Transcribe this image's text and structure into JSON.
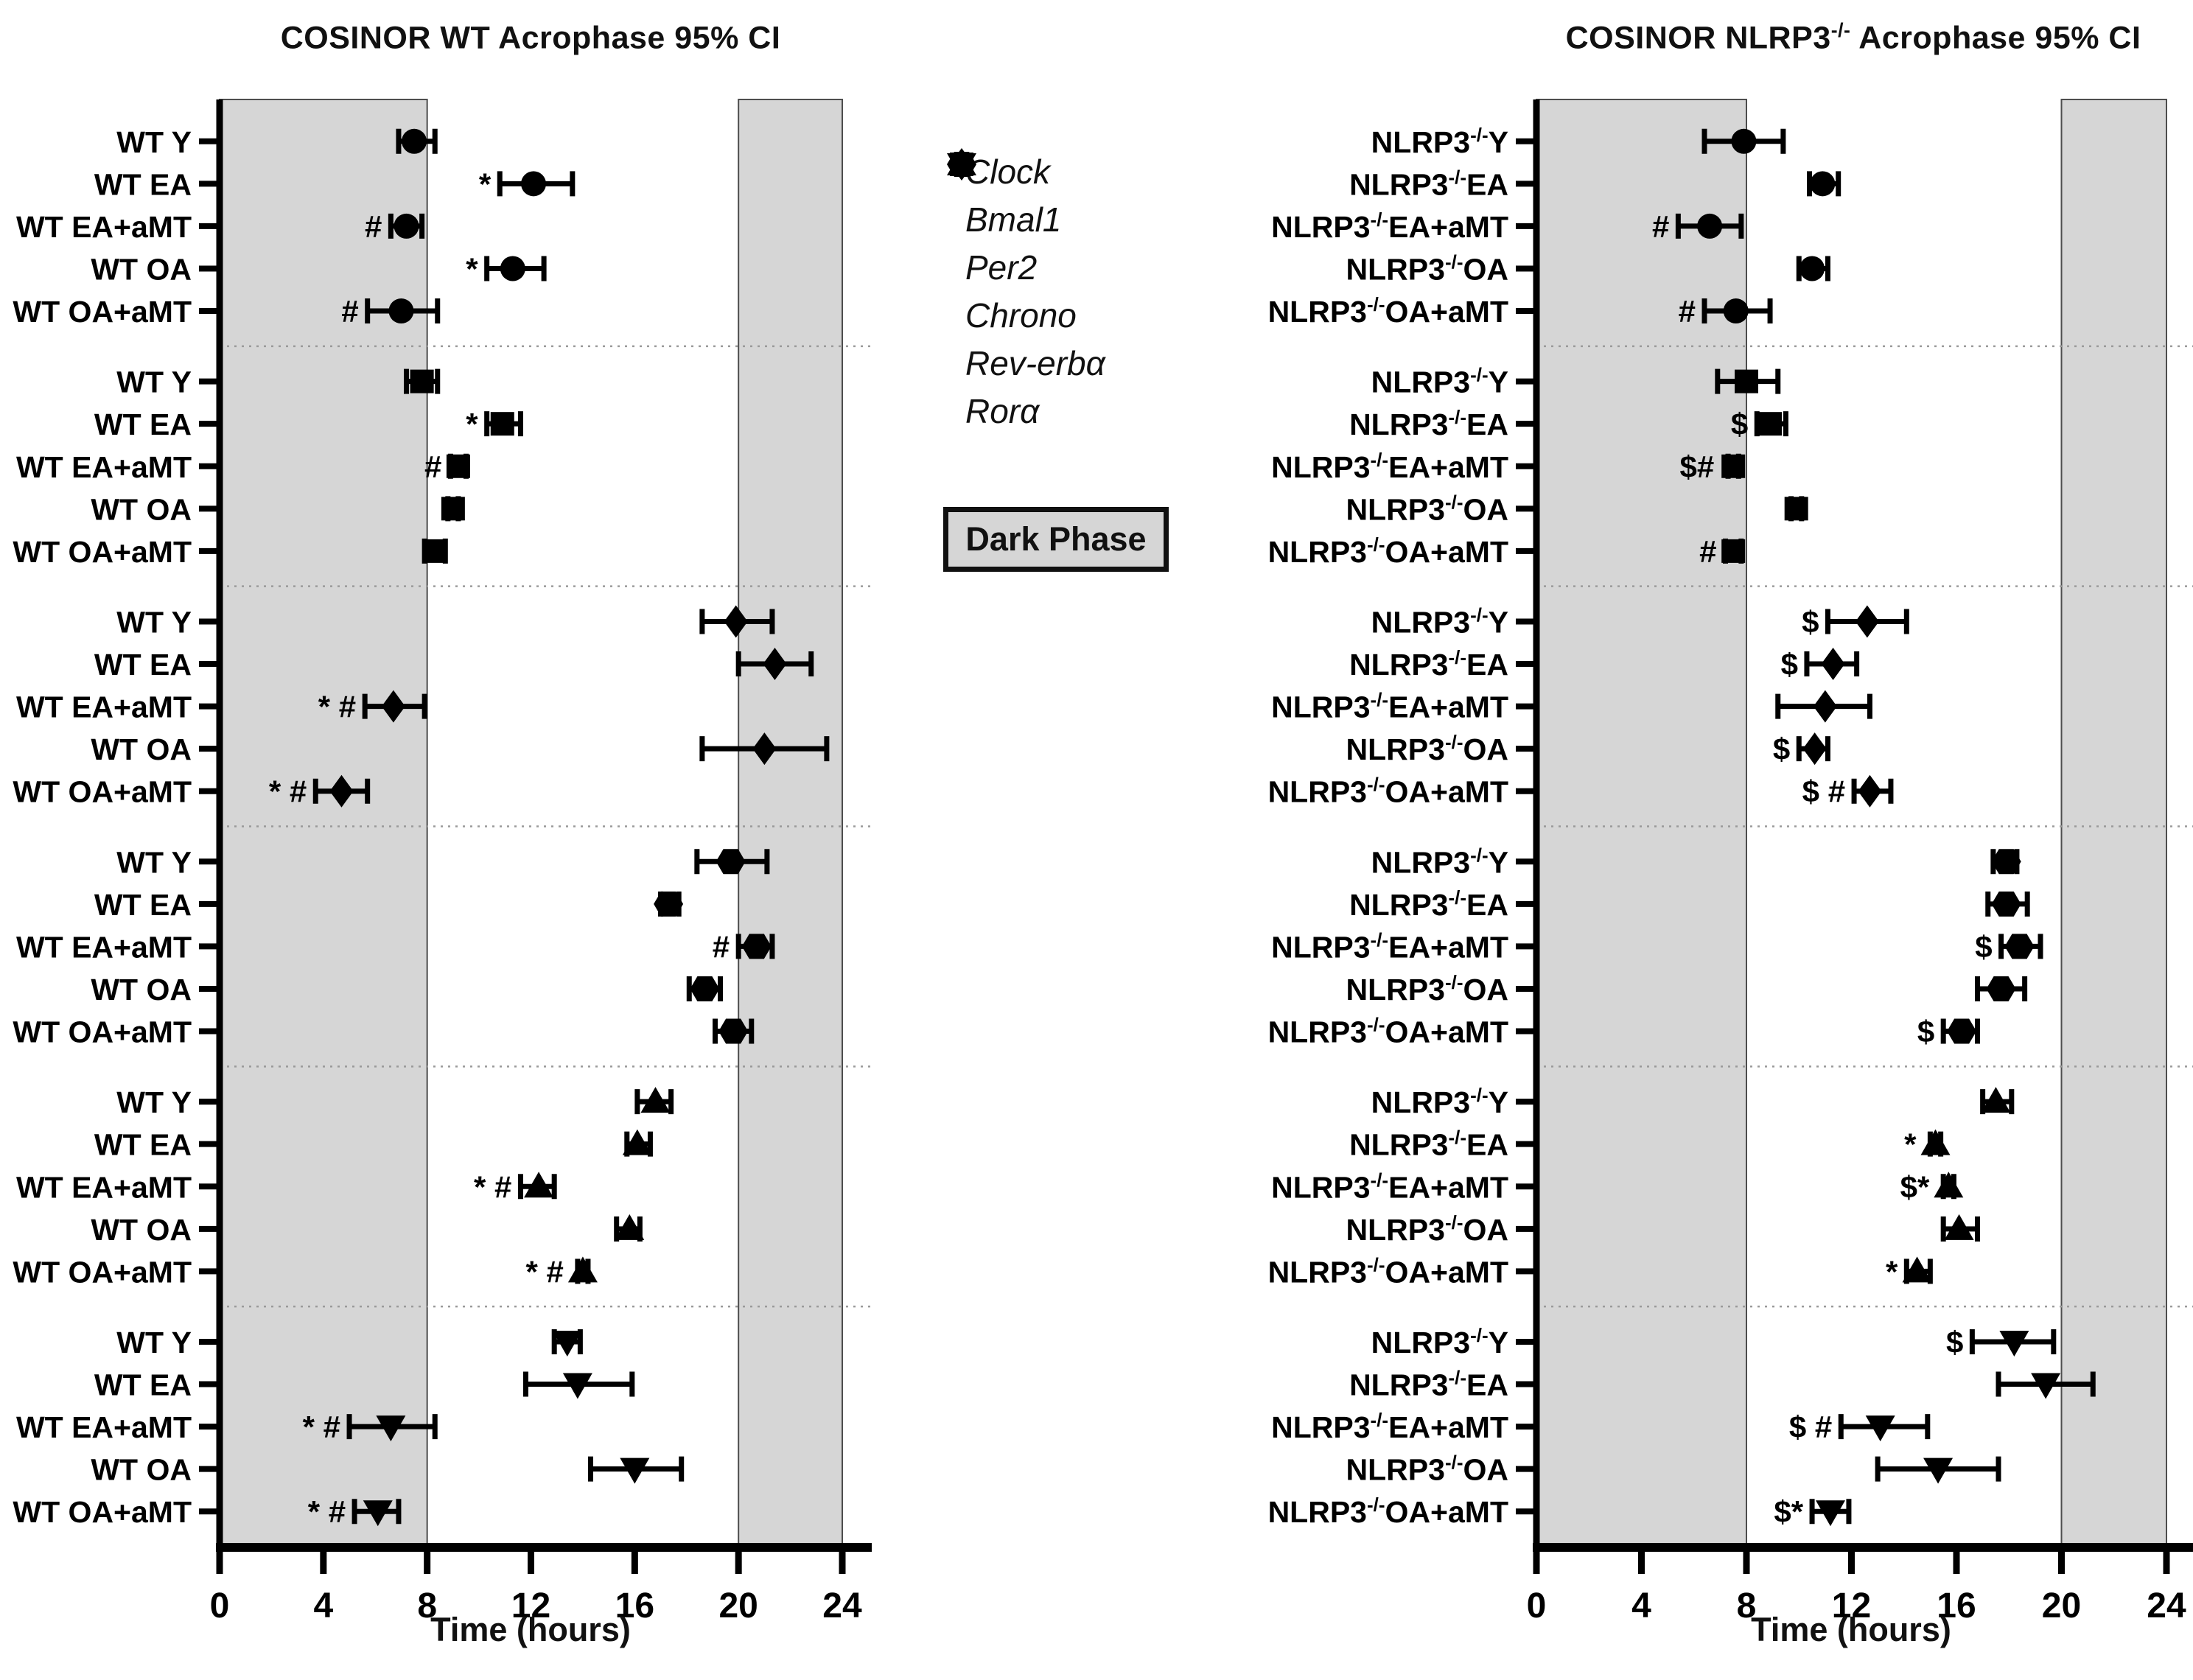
{
  "dark_phase_label": "Dark Phase",
  "colors": {
    "dark_band": "#d6d6d6",
    "band_border": "#4d4d4d",
    "marker": "#000000",
    "separator": "#9a9a9a",
    "axis": "#000000"
  },
  "legend": {
    "items": [
      {
        "marker": "circle",
        "label": "Clock"
      },
      {
        "marker": "square",
        "label": "Bmal1"
      },
      {
        "marker": "diamond",
        "label": "Per2"
      },
      {
        "marker": "hexagon",
        "label": "Chrono"
      },
      {
        "marker": "triangle-up",
        "label": "Rev-erbα"
      },
      {
        "marker": "triangle-down",
        "label": "Rorα"
      }
    ]
  },
  "chart_data": [
    {
      "panel": "WT",
      "type": "scatter",
      "title": "COSINOR WT Acrophase 95% CI",
      "title_prefix": "COSINOR WT Acrophase 95% CI",
      "title_sup": "",
      "title_suffix": "",
      "xlabel": "Time (hours)",
      "xlim": [
        0,
        24
      ],
      "xticks": [
        0,
        4,
        8,
        12,
        16,
        20,
        24
      ],
      "dark_bands": [
        [
          0,
          8
        ],
        [
          20,
          24
        ]
      ],
      "row_label_prefix": "",
      "row_label_sup": "",
      "genes": [
        {
          "name": "Clock",
          "marker": "circle",
          "rows": [
            {
              "label": "WT Y",
              "x": 7.5,
              "ci": [
                6.9,
                8.3
              ],
              "ann": ""
            },
            {
              "label": "WT EA",
              "x": 12.1,
              "ci": [
                10.8,
                13.6
              ],
              "ann": "*"
            },
            {
              "label": "WT EA+aMT",
              "x": 7.2,
              "ci": [
                6.6,
                7.8
              ],
              "ann": "#"
            },
            {
              "label": "WT OA",
              "x": 11.3,
              "ci": [
                10.3,
                12.5
              ],
              "ann": "*"
            },
            {
              "label": "WT OA+aMT",
              "x": 7.0,
              "ci": [
                5.7,
                8.4
              ],
              "ann": "#"
            }
          ]
        },
        {
          "name": "Bmal1",
          "marker": "square",
          "rows": [
            {
              "label": "WT Y",
              "x": 7.8,
              "ci": [
                7.2,
                8.4
              ],
              "ann": ""
            },
            {
              "label": "WT EA",
              "x": 10.9,
              "ci": [
                10.3,
                11.6
              ],
              "ann": "*"
            },
            {
              "label": "WT EA+aMT",
              "x": 9.2,
              "ci": [
                8.9,
                9.5
              ],
              "ann": "#"
            },
            {
              "label": "WT OA",
              "x": 9.0,
              "ci": [
                8.8,
                9.2
              ],
              "ann": ""
            },
            {
              "label": "WT OA+aMT",
              "x": 8.3,
              "ci": [
                7.9,
                8.7
              ],
              "ann": ""
            }
          ]
        },
        {
          "name": "Per2",
          "marker": "diamond",
          "rows": [
            {
              "label": "WT Y",
              "x": 19.9,
              "ci": [
                18.6,
                21.3
              ],
              "ann": ""
            },
            {
              "label": "WT EA",
              "x": 21.4,
              "ci": [
                20.0,
                22.8
              ],
              "ann": ""
            },
            {
              "label": "WT EA+aMT",
              "x": 6.7,
              "ci": [
                5.6,
                7.9
              ],
              "ann": "* #"
            },
            {
              "label": "WT OA",
              "x": 21.0,
              "ci": [
                18.6,
                23.4
              ],
              "ann": ""
            },
            {
              "label": "WT OA+aMT",
              "x": 4.7,
              "ci": [
                3.7,
                5.7
              ],
              "ann": "* #"
            }
          ]
        },
        {
          "name": "Chrono",
          "marker": "hexagon",
          "rows": [
            {
              "label": "WT Y",
              "x": 19.7,
              "ci": [
                18.4,
                21.1
              ],
              "ann": ""
            },
            {
              "label": "WT EA",
              "x": 17.3,
              "ci": [
                17.0,
                17.7
              ],
              "ann": ""
            },
            {
              "label": "WT EA+aMT",
              "x": 20.7,
              "ci": [
                20.0,
                21.3
              ],
              "ann": "#"
            },
            {
              "label": "WT OA",
              "x": 18.7,
              "ci": [
                18.1,
                19.3
              ],
              "ann": ""
            },
            {
              "label": "WT OA+aMT",
              "x": 19.8,
              "ci": [
                19.1,
                20.5
              ],
              "ann": ""
            }
          ]
        },
        {
          "name": "Rev-erbα",
          "marker": "triangle-up",
          "rows": [
            {
              "label": "WT Y",
              "x": 16.8,
              "ci": [
                16.1,
                17.4
              ],
              "ann": ""
            },
            {
              "label": "WT EA",
              "x": 16.1,
              "ci": [
                15.7,
                16.6
              ],
              "ann": ""
            },
            {
              "label": "WT EA+aMT",
              "x": 12.3,
              "ci": [
                11.6,
                12.9
              ],
              "ann": "* #"
            },
            {
              "label": "WT OA",
              "x": 15.8,
              "ci": [
                15.3,
                16.2
              ],
              "ann": ""
            },
            {
              "label": "WT OA+aMT",
              "x": 14.0,
              "ci": [
                13.8,
                14.2
              ],
              "ann": "* #"
            }
          ]
        },
        {
          "name": "Rorα",
          "marker": "triangle-down",
          "rows": [
            {
              "label": "WT Y",
              "x": 13.4,
              "ci": [
                12.9,
                13.9
              ],
              "ann": ""
            },
            {
              "label": "WT EA",
              "x": 13.8,
              "ci": [
                11.8,
                15.9
              ],
              "ann": ""
            },
            {
              "label": "WT EA+aMT",
              "x": 6.6,
              "ci": [
                5.0,
                8.3
              ],
              "ann": "* #"
            },
            {
              "label": "WT OA",
              "x": 16.0,
              "ci": [
                14.3,
                17.8
              ],
              "ann": ""
            },
            {
              "label": "WT OA+aMT",
              "x": 6.1,
              "ci": [
                5.2,
                6.9
              ],
              "ann": "* #"
            }
          ]
        }
      ]
    },
    {
      "panel": "NLRP3-/-",
      "type": "scatter",
      "title": "COSINOR NLRP3-/- Acrophase 95% CI",
      "title_prefix": "COSINOR NLRP3",
      "title_sup": "-/-",
      "title_suffix": " Acrophase 95% CI",
      "xlabel": "Time (hours)",
      "xlim": [
        0,
        24
      ],
      "xticks": [
        0,
        4,
        8,
        12,
        16,
        20,
        24
      ],
      "dark_bands": [
        [
          0,
          8
        ],
        [
          20,
          24
        ]
      ],
      "row_label_prefix": "NLRP3",
      "row_label_sup": "-/-",
      "genes": [
        {
          "name": "Clock",
          "marker": "circle",
          "rows": [
            {
              "label": "Y",
              "x": 7.9,
              "ci": [
                6.4,
                9.4
              ],
              "ann": ""
            },
            {
              "label": "EA",
              "x": 10.9,
              "ci": [
                10.4,
                11.5
              ],
              "ann": ""
            },
            {
              "label": "EA+aMT",
              "x": 6.6,
              "ci": [
                5.4,
                7.8
              ],
              "ann": "#"
            },
            {
              "label": "OA",
              "x": 10.5,
              "ci": [
                10.0,
                11.1
              ],
              "ann": ""
            },
            {
              "label": "OA+aMT",
              "x": 7.6,
              "ci": [
                6.4,
                8.9
              ],
              "ann": "#"
            }
          ]
        },
        {
          "name": "Bmal1",
          "marker": "square",
          "rows": [
            {
              "label": "Y",
              "x": 8.0,
              "ci": [
                6.9,
                9.2
              ],
              "ann": ""
            },
            {
              "label": "EA",
              "x": 8.9,
              "ci": [
                8.4,
                9.5
              ],
              "ann": "$"
            },
            {
              "label": "EA+aMT",
              "x": 7.5,
              "ci": [
                7.3,
                7.7
              ],
              "ann": "$#"
            },
            {
              "label": "OA",
              "x": 9.9,
              "ci": [
                9.7,
                10.1
              ],
              "ann": ""
            },
            {
              "label": "OA+aMT",
              "x": 7.5,
              "ci": [
                7.2,
                7.8
              ],
              "ann": "#"
            }
          ]
        },
        {
          "name": "Per2",
          "marker": "diamond",
          "rows": [
            {
              "label": "Y",
              "x": 12.6,
              "ci": [
                11.1,
                14.1
              ],
              "ann": "$"
            },
            {
              "label": "EA",
              "x": 11.3,
              "ci": [
                10.3,
                12.2
              ],
              "ann": "$"
            },
            {
              "label": "EA+aMT",
              "x": 11.0,
              "ci": [
                9.2,
                12.7
              ],
              "ann": ""
            },
            {
              "label": "OA",
              "x": 10.6,
              "ci": [
                10.0,
                11.1
              ],
              "ann": "$"
            },
            {
              "label": "OA+aMT",
              "x": 12.7,
              "ci": [
                12.1,
                13.5
              ],
              "ann": "$ #"
            }
          ]
        },
        {
          "name": "Chrono",
          "marker": "hexagon",
          "rows": [
            {
              "label": "Y",
              "x": 17.9,
              "ci": [
                17.4,
                18.3
              ],
              "ann": ""
            },
            {
              "label": "EA",
              "x": 17.9,
              "ci": [
                17.2,
                18.7
              ],
              "ann": ""
            },
            {
              "label": "EA+aMT",
              "x": 18.4,
              "ci": [
                17.7,
                19.2
              ],
              "ann": "$"
            },
            {
              "label": "OA",
              "x": 17.7,
              "ci": [
                16.8,
                18.6
              ],
              "ann": ""
            },
            {
              "label": "OA+aMT",
              "x": 16.2,
              "ci": [
                15.5,
                16.8
              ],
              "ann": "$"
            }
          ]
        },
        {
          "name": "Rev-erbα",
          "marker": "triangle-up",
          "rows": [
            {
              "label": "Y",
              "x": 17.5,
              "ci": [
                17.0,
                18.1
              ],
              "ann": ""
            },
            {
              "label": "EA",
              "x": 15.2,
              "ci": [
                15.0,
                15.4
              ],
              "ann": "*"
            },
            {
              "label": "EA+aMT",
              "x": 15.7,
              "ci": [
                15.5,
                15.9
              ],
              "ann": "$*"
            },
            {
              "label": "OA",
              "x": 16.1,
              "ci": [
                15.5,
                16.8
              ],
              "ann": ""
            },
            {
              "label": "OA+aMT",
              "x": 14.5,
              "ci": [
                14.1,
                15.0
              ],
              "ann": "*"
            }
          ]
        },
        {
          "name": "Rorα",
          "marker": "triangle-down",
          "rows": [
            {
              "label": "Y",
              "x": 18.2,
              "ci": [
                16.6,
                19.7
              ],
              "ann": "$"
            },
            {
              "label": "EA",
              "x": 19.4,
              "ci": [
                17.6,
                21.2
              ],
              "ann": ""
            },
            {
              "label": "EA+aMT",
              "x": 13.1,
              "ci": [
                11.6,
                14.9
              ],
              "ann": "$ #"
            },
            {
              "label": "OA",
              "x": 15.3,
              "ci": [
                13.0,
                17.6
              ],
              "ann": ""
            },
            {
              "label": "OA+aMT",
              "x": 11.2,
              "ci": [
                10.5,
                11.9
              ],
              "ann": "$*"
            }
          ]
        }
      ]
    }
  ]
}
